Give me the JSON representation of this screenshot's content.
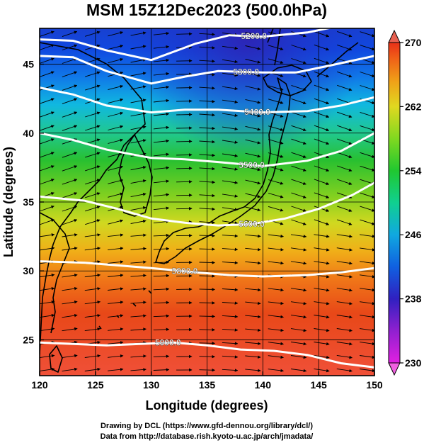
{
  "title": "MSM 15Z12Dec2023 (500.0hPa)",
  "xlabel": "Longitude (degrees)",
  "ylabel": "Latitude  (degrees)",
  "x_ticks": [
    120,
    125,
    130,
    135,
    140,
    145,
    150
  ],
  "y_ticks": [
    25,
    30,
    35,
    40,
    45
  ],
  "xlim": [
    120,
    150
  ],
  "ylim": [
    22.4,
    47.6
  ],
  "colorbar": {
    "min": 230,
    "max": 270,
    "ticks": [
      230,
      238,
      246,
      254,
      262,
      270
    ],
    "colors": [
      "#e020e0",
      "#9020d0",
      "#3020c0",
      "#1060e0",
      "#10b0e0",
      "#10d090",
      "#20c830",
      "#80d820",
      "#d8e020",
      "#f0a018",
      "#f06018",
      "#e83018"
    ]
  },
  "contours": [
    {
      "label": "5200.0",
      "label_lon": 139.2,
      "points": [
        [
          120,
          46.8
        ],
        [
          123,
          46.7
        ],
        [
          126,
          46.0
        ],
        [
          130,
          45.3
        ],
        [
          134,
          46.5
        ],
        [
          137,
          47.1
        ],
        [
          140,
          47.0
        ],
        [
          144,
          47.3
        ],
        [
          147,
          47.8
        ]
      ]
    },
    {
      "label": "5300.0",
      "label_lon": 138.5,
      "points": [
        [
          120,
          45.6
        ],
        [
          123,
          45.5
        ],
        [
          126,
          44.5
        ],
        [
          130,
          43.6
        ],
        [
          133,
          44.1
        ],
        [
          136,
          44.5
        ],
        [
          140,
          44.4
        ],
        [
          143,
          44.4
        ],
        [
          146,
          44.9
        ],
        [
          150,
          45.6
        ]
      ]
    },
    {
      "label": "5400.0",
      "label_lon": 139.5,
      "points": [
        [
          120,
          43.3
        ],
        [
          123,
          42.8
        ],
        [
          126,
          42.0
        ],
        [
          130,
          41.5
        ],
        [
          133,
          41.7
        ],
        [
          136,
          41.7
        ],
        [
          140,
          41.5
        ],
        [
          144,
          41.6
        ],
        [
          147,
          42.0
        ],
        [
          150,
          42.6
        ]
      ]
    },
    {
      "label": "5500.0",
      "label_lon": 139.0,
      "points": [
        [
          120,
          40.0
        ],
        [
          123,
          39.5
        ],
        [
          126,
          38.8
        ],
        [
          130,
          38.2
        ],
        [
          133,
          38.1
        ],
        [
          136,
          37.9
        ],
        [
          140,
          37.6
        ],
        [
          144,
          38.0
        ],
        [
          147,
          38.7
        ],
        [
          150,
          40.0
        ]
      ]
    },
    {
      "label": "5600.0",
      "label_lon": 139.0,
      "points": [
        [
          120,
          35.4
        ],
        [
          124,
          35.1
        ],
        [
          127,
          34.5
        ],
        [
          130,
          33.8
        ],
        [
          133,
          33.5
        ],
        [
          136,
          33.3
        ],
        [
          139,
          33.4
        ],
        [
          142,
          33.8
        ],
        [
          145,
          34.5
        ],
        [
          148,
          35.5
        ],
        [
          150,
          36.4
        ]
      ]
    },
    {
      "label": "5800.0",
      "label_lon": 133.0,
      "points": [
        [
          120,
          30.7
        ],
        [
          124,
          30.6
        ],
        [
          127,
          30.4
        ],
        [
          130,
          30.2
        ],
        [
          134,
          29.9
        ],
        [
          137,
          29.7
        ],
        [
          140,
          29.6
        ],
        [
          144,
          29.7
        ],
        [
          147,
          29.9
        ],
        [
          150,
          30.2
        ]
      ]
    },
    {
      "label": "5900.0",
      "label_lon": 131.5,
      "points": [
        [
          120,
          24.8
        ],
        [
          123,
          24.7
        ],
        [
          126,
          24.6
        ],
        [
          129,
          24.7
        ],
        [
          132,
          24.8
        ],
        [
          135,
          24.6
        ],
        [
          138,
          24.3
        ],
        [
          141,
          24.2
        ],
        [
          144,
          23.9
        ],
        [
          147,
          23.3
        ],
        [
          150,
          23.0
        ]
      ]
    }
  ],
  "footer": {
    "line1": "Drawing by DCL (https://www.gfd-dennou.org/library/dcl/)",
    "line2": "Data from http://database.rish.kyoto-u.ac.jp/arch/jmadata/"
  }
}
